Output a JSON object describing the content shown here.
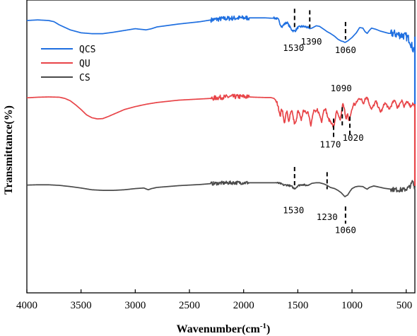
{
  "chart_data": {
    "type": "line",
    "xlabel": "Wavenumber(cm",
    "xlabel_sup": "-1",
    "xlabel_tail": ")",
    "ylabel": "Transmittance(%)",
    "xlim": [
      4000,
      420
    ],
    "x_reversed": true,
    "ylim": [
      0,
      100
    ],
    "x_ticks": [
      4000,
      3500,
      3000,
      2500,
      2000,
      1500,
      1000,
      500
    ],
    "legend_position": "top-left",
    "series": [
      {
        "name": "QCS",
        "color": "#1f6fe0",
        "points": [
          [
            4000,
            93.0
          ],
          [
            3900,
            93.2
          ],
          [
            3800,
            93.0
          ],
          [
            3750,
            92.6
          ],
          [
            3700,
            91.5
          ],
          [
            3600,
            89.8
          ],
          [
            3500,
            88.8
          ],
          [
            3400,
            88.5
          ],
          [
            3300,
            88.5
          ],
          [
            3200,
            89.0
          ],
          [
            3100,
            89.6
          ],
          [
            3000,
            90.2
          ],
          [
            2950,
            90.0
          ],
          [
            2900,
            89.8
          ],
          [
            2850,
            90.2
          ],
          [
            2800,
            90.8
          ],
          [
            2600,
            91.8
          ],
          [
            2400,
            92.6
          ],
          [
            2300,
            93.2
          ],
          [
            2200,
            93.6
          ],
          [
            2100,
            93.8
          ],
          [
            2000,
            93.9
          ],
          [
            1900,
            93.9
          ],
          [
            1800,
            93.9
          ],
          [
            1750,
            93.8
          ],
          [
            1700,
            93.8
          ],
          [
            1680,
            93.3
          ],
          [
            1660,
            91.6
          ],
          [
            1645,
            90.8
          ],
          [
            1630,
            91.6
          ],
          [
            1600,
            92.4
          ],
          [
            1560,
            90.0
          ],
          [
            1540,
            89.4
          ],
          [
            1520,
            89.6
          ],
          [
            1500,
            90.6
          ],
          [
            1460,
            91.0
          ],
          [
            1420,
            90.8
          ],
          [
            1390,
            90.2
          ],
          [
            1370,
            90.4
          ],
          [
            1330,
            91.2
          ],
          [
            1300,
            91.0
          ],
          [
            1260,
            90.0
          ],
          [
            1230,
            89.2
          ],
          [
            1200,
            88.6
          ],
          [
            1160,
            87.6
          ],
          [
            1130,
            86.6
          ],
          [
            1100,
            86.0
          ],
          [
            1080,
            85.8
          ],
          [
            1065,
            85.5
          ],
          [
            1060,
            85.6
          ],
          [
            1040,
            86.0
          ],
          [
            1000,
            87.2
          ],
          [
            960,
            88.8
          ],
          [
            930,
            90.6
          ],
          [
            900,
            90.4
          ],
          [
            880,
            89.2
          ],
          [
            860,
            88.6
          ],
          [
            840,
            89.6
          ],
          [
            820,
            90.4
          ],
          [
            780,
            90.0
          ],
          [
            740,
            89.4
          ],
          [
            700,
            89.0
          ],
          [
            660,
            88.6
          ],
          [
            620,
            88.6
          ],
          [
            580,
            88.2
          ],
          [
            540,
            88.0
          ],
          [
            500,
            87.5
          ],
          [
            470,
            86.5
          ],
          [
            450,
            84.5
          ],
          [
            435,
            83.0
          ],
          [
            425,
            84.0
          ],
          [
            420,
            82.5
          ]
        ],
        "noise_regions": [
          [
            2300,
            1950,
            0.8
          ],
          [
            1720,
            1400,
            0.4
          ],
          [
            640,
            420,
            1.4
          ]
        ]
      },
      {
        "name": "QU",
        "color": "#e84448",
        "points": [
          [
            4000,
            66.6
          ],
          [
            3900,
            66.8
          ],
          [
            3800,
            66.9
          ],
          [
            3700,
            66.8
          ],
          [
            3650,
            66.4
          ],
          [
            3600,
            65.6
          ],
          [
            3550,
            64.2
          ],
          [
            3500,
            62.6
          ],
          [
            3450,
            60.8
          ],
          [
            3400,
            59.8
          ],
          [
            3350,
            59.4
          ],
          [
            3300,
            59.5
          ],
          [
            3250,
            60.2
          ],
          [
            3200,
            61.0
          ],
          [
            3150,
            61.8
          ],
          [
            3100,
            62.6
          ],
          [
            3000,
            63.6
          ],
          [
            2900,
            64.4
          ],
          [
            2800,
            65.0
          ],
          [
            2600,
            65.8
          ],
          [
            2400,
            66.2
          ],
          [
            2300,
            66.4
          ],
          [
            2200,
            66.8
          ],
          [
            2100,
            67.0
          ],
          [
            2000,
            67.0
          ],
          [
            1900,
            66.8
          ],
          [
            1800,
            66.7
          ],
          [
            1750,
            66.7
          ],
          [
            1720,
            66.4
          ],
          [
            1700,
            65.6
          ],
          [
            1680,
            63.8
          ],
          [
            1670,
            61.0
          ],
          [
            1660,
            60.6
          ],
          [
            1650,
            63.0
          ],
          [
            1640,
            62.0
          ],
          [
            1625,
            57.6
          ],
          [
            1610,
            60.8
          ],
          [
            1600,
            62.0
          ],
          [
            1585,
            58.2
          ],
          [
            1570,
            61.2
          ],
          [
            1555,
            62.6
          ],
          [
            1545,
            60.2
          ],
          [
            1530,
            57.8
          ],
          [
            1515,
            58.4
          ],
          [
            1500,
            62.2
          ],
          [
            1485,
            61.0
          ],
          [
            1470,
            58.8
          ],
          [
            1455,
            61.4
          ],
          [
            1440,
            62.6
          ],
          [
            1425,
            61.0
          ],
          [
            1410,
            62.2
          ],
          [
            1395,
            60.2
          ],
          [
            1380,
            57.4
          ],
          [
            1365,
            60.0
          ],
          [
            1350,
            62.6
          ],
          [
            1335,
            61.4
          ],
          [
            1320,
            62.6
          ],
          [
            1300,
            60.8
          ],
          [
            1280,
            58.6
          ],
          [
            1265,
            61.8
          ],
          [
            1250,
            63.2
          ],
          [
            1235,
            61.6
          ],
          [
            1220,
            59.4
          ],
          [
            1205,
            58.8
          ],
          [
            1190,
            58.2
          ],
          [
            1175,
            56.8
          ],
          [
            1165,
            57.2
          ],
          [
            1150,
            60.6
          ],
          [
            1140,
            62.0
          ],
          [
            1125,
            60.2
          ],
          [
            1110,
            58.8
          ],
          [
            1095,
            62.0
          ],
          [
            1085,
            64.6
          ],
          [
            1070,
            62.6
          ],
          [
            1055,
            59.6
          ],
          [
            1040,
            61.0
          ],
          [
            1030,
            58.2
          ],
          [
            1015,
            60.6
          ],
          [
            1000,
            62.6
          ],
          [
            985,
            64.6
          ],
          [
            970,
            64.2
          ],
          [
            950,
            65.6
          ],
          [
            930,
            66.6
          ],
          [
            910,
            65.8
          ],
          [
            895,
            64.6
          ],
          [
            880,
            66.4
          ],
          [
            860,
            66.8
          ],
          [
            840,
            64.6
          ],
          [
            820,
            62.6
          ],
          [
            800,
            64.0
          ],
          [
            780,
            65.4
          ],
          [
            760,
            63.8
          ],
          [
            740,
            61.8
          ],
          [
            720,
            62.6
          ],
          [
            700,
            64.8
          ],
          [
            680,
            64.2
          ],
          [
            660,
            62.6
          ],
          [
            640,
            63.8
          ],
          [
            620,
            65.2
          ],
          [
            600,
            65.6
          ],
          [
            580,
            63.0
          ],
          [
            560,
            64.6
          ],
          [
            540,
            66.0
          ],
          [
            520,
            63.4
          ],
          [
            500,
            64.8
          ],
          [
            480,
            65.2
          ],
          [
            460,
            63.6
          ],
          [
            440,
            64.6
          ],
          [
            425,
            64.0
          ],
          [
            420,
            64.5
          ]
        ],
        "noise_regions": [
          [
            2300,
            1950,
            0.8
          ],
          [
            1700,
            420,
            0.5
          ]
        ]
      },
      {
        "name": "CS",
        "color": "#4a4a4a",
        "points": [
          [
            4000,
            36.8
          ],
          [
            3900,
            36.9
          ],
          [
            3800,
            36.9
          ],
          [
            3750,
            36.8
          ],
          [
            3700,
            36.7
          ],
          [
            3600,
            36.3
          ],
          [
            3500,
            35.8
          ],
          [
            3400,
            35.2
          ],
          [
            3300,
            35.0
          ],
          [
            3200,
            35.0
          ],
          [
            3100,
            35.2
          ],
          [
            3000,
            35.6
          ],
          [
            2920,
            35.8
          ],
          [
            2880,
            35.2
          ],
          [
            2850,
            35.6
          ],
          [
            2800,
            36.0
          ],
          [
            2600,
            36.6
          ],
          [
            2400,
            37.0
          ],
          [
            2300,
            37.3
          ],
          [
            2200,
            37.5
          ],
          [
            2100,
            37.6
          ],
          [
            2000,
            37.6
          ],
          [
            1900,
            37.6
          ],
          [
            1800,
            37.6
          ],
          [
            1700,
            37.6
          ],
          [
            1660,
            37.3
          ],
          [
            1630,
            36.8
          ],
          [
            1590,
            36.8
          ],
          [
            1550,
            36.2
          ],
          [
            1540,
            35.7
          ],
          [
            1520,
            35.8
          ],
          [
            1500,
            36.6
          ],
          [
            1460,
            37.0
          ],
          [
            1420,
            36.7
          ],
          [
            1390,
            37.0
          ],
          [
            1370,
            37.4
          ],
          [
            1330,
            37.6
          ],
          [
            1300,
            37.6
          ],
          [
            1260,
            37.2
          ],
          [
            1230,
            36.7
          ],
          [
            1200,
            36.0
          ],
          [
            1160,
            35.6
          ],
          [
            1130,
            35.0
          ],
          [
            1100,
            34.2
          ],
          [
            1080,
            33.4
          ],
          [
            1065,
            32.8
          ],
          [
            1060,
            33.0
          ],
          [
            1040,
            33.4
          ],
          [
            1020,
            34.6
          ],
          [
            1000,
            35.6
          ],
          [
            970,
            36.2
          ],
          [
            940,
            36.4
          ],
          [
            900,
            36.3
          ],
          [
            880,
            35.8
          ],
          [
            860,
            35.4
          ],
          [
            840,
            36.0
          ],
          [
            800,
            36.5
          ],
          [
            760,
            36.2
          ],
          [
            700,
            35.7
          ],
          [
            640,
            35.4
          ],
          [
            580,
            35.2
          ],
          [
            520,
            35.2
          ],
          [
            480,
            35.8
          ],
          [
            455,
            36.8
          ],
          [
            440,
            38.2
          ],
          [
            430,
            36.6
          ],
          [
            420,
            36.0
          ]
        ],
        "noise_regions": [
          [
            2300,
            1950,
            0.6
          ],
          [
            1700,
            1400,
            0.3
          ],
          [
            640,
            420,
            0.8
          ]
        ]
      }
    ],
    "vertical_line": {
      "x": 420,
      "from": 36.5,
      "to": 87.5,
      "color": "#1f6fe0",
      "color2": "#e84448",
      "split": 64.5
    },
    "annotations": [
      {
        "series": "QCS",
        "label": "1530",
        "x": 1530,
        "mark_top": 97.0,
        "mark_bottom": 90.5,
        "text_x": 1540,
        "text_y": 82.6
      },
      {
        "series": "QCS",
        "label": "1390",
        "x": 1390,
        "mark_top": 96.5,
        "mark_bottom": 90.5,
        "text_x": 1375,
        "text_y": 84.8
      },
      {
        "series": "QCS",
        "label": "1060",
        "x": 1060,
        "mark_top": 92.5,
        "mark_bottom": 86.5,
        "text_x": 1060,
        "text_y": 81.9
      },
      {
        "series": "QU",
        "label": "1090",
        "x": 1090,
        "mark_top": 63.4,
        "mark_bottom": 57.2,
        "text_x": 1100,
        "text_y": 68.8
      },
      {
        "series": "QU",
        "label": "1170",
        "x": 1170,
        "mark_top": 59.5,
        "mark_bottom": 53.0,
        "text_x": 1200,
        "text_y": 49.6
      },
      {
        "series": "QU",
        "label": "1020",
        "x": 1020,
        "mark_top": 60.2,
        "mark_bottom": 54.0,
        "text_x": 990,
        "text_y": 51.9
      },
      {
        "series": "CS",
        "label": "1530",
        "x": 1530,
        "mark_top": 43.0,
        "mark_bottom": 36.2,
        "text_x": 1540,
        "text_y": 27.2
      },
      {
        "series": "CS",
        "label": "1230",
        "x": 1230,
        "mark_top": 41.2,
        "mark_bottom": 35.4,
        "text_x": 1230,
        "text_y": 24.9
      },
      {
        "series": "CS",
        "label": "1060",
        "x": 1060,
        "mark_top": 29.5,
        "mark_bottom": 23.6,
        "text_x": 1060,
        "text_y": 20.4
      }
    ]
  }
}
